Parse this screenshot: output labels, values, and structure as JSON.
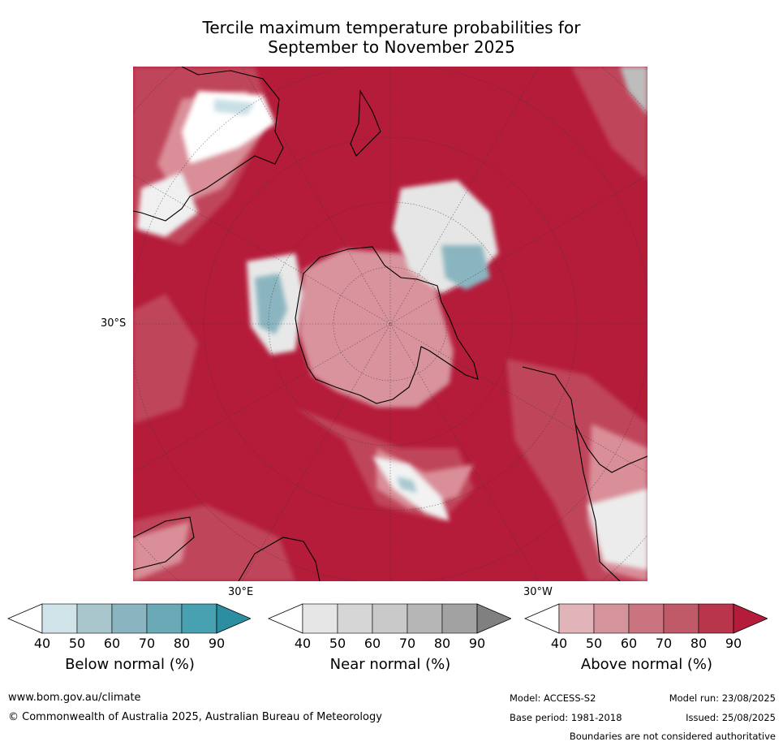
{
  "title_line1": "Tercile maximum temperature probabilities for",
  "title_line2": "September to November 2025",
  "map": {
    "lat_label": "30°S",
    "lon_label_east": "30°E",
    "lon_label_west": "30°W",
    "colors": {
      "above_dominant": "#b41c3a",
      "above_mid": "#c85a6a",
      "above_light": "#d8939c",
      "near_light": "#e6e6e6",
      "below_light": "#a9c8d0",
      "white": "#ffffff",
      "coast": "#000000"
    }
  },
  "colorbars": [
    {
      "label": "Below normal (%)",
      "ticks": [
        "40",
        "50",
        "60",
        "70",
        "80",
        "90"
      ],
      "colors": [
        "#cfe3e8",
        "#a8c6cc",
        "#8ab5c0",
        "#6aaab6",
        "#47a1b1",
        "#2c8ea1"
      ]
    },
    {
      "label": "Near normal (%)",
      "ticks": [
        "40",
        "50",
        "60",
        "70",
        "80",
        "90"
      ],
      "colors": [
        "#e6e6e6",
        "#d6d6d6",
        "#c9c9c9",
        "#b6b6b6",
        "#a2a2a2",
        "#808080"
      ]
    },
    {
      "label": "Above normal (%)",
      "ticks": [
        "40",
        "50",
        "60",
        "70",
        "80",
        "90"
      ],
      "colors": [
        "#e0b4b9",
        "#d5949b",
        "#c9747f",
        "#c05a68",
        "#b9354b",
        "#b41c3a"
      ]
    }
  ],
  "footer": {
    "url": "www.bom.gov.au/climate",
    "copyright": "© Commonwealth of Australia 2025, Australian Bureau of Meteorology",
    "model": "Model: ACCESS-S2",
    "base_period": "Base period: 1981-2018",
    "model_run": "Model run: 23/08/2025",
    "issued": "Issued: 25/08/2025",
    "boundaries": "Boundaries are not considered authoritative"
  }
}
